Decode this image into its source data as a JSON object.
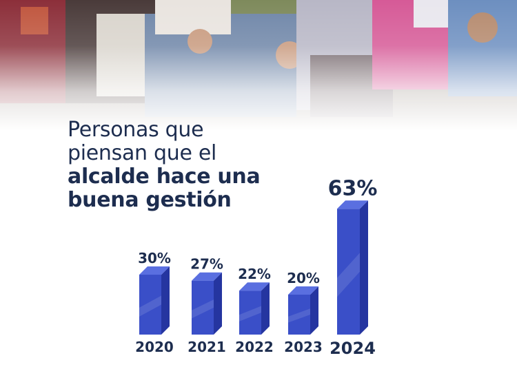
{
  "headline": {
    "line1": "Personas que",
    "line2": "piensan que el",
    "line3": "alcalde hace una",
    "line4": "buena gestión"
  },
  "colors": {
    "bar_front": "#3a4fc8",
    "bar_side": "#2535a0",
    "bar_top": "#5a6fe0",
    "text": "#1d2d4f"
  },
  "chart_data": {
    "type": "bar",
    "categories": [
      "2020",
      "2021",
      "2022",
      "2023",
      "2024"
    ],
    "values": [
      30,
      27,
      22,
      20,
      63
    ],
    "value_labels": [
      "30%",
      "27%",
      "22%",
      "20%",
      "63%"
    ],
    "highlight_category": "2024",
    "title": "Personas que piensan que el alcalde hace una buena gestión",
    "xlabel": "",
    "ylabel": "",
    "grid": false,
    "legend": "none"
  }
}
